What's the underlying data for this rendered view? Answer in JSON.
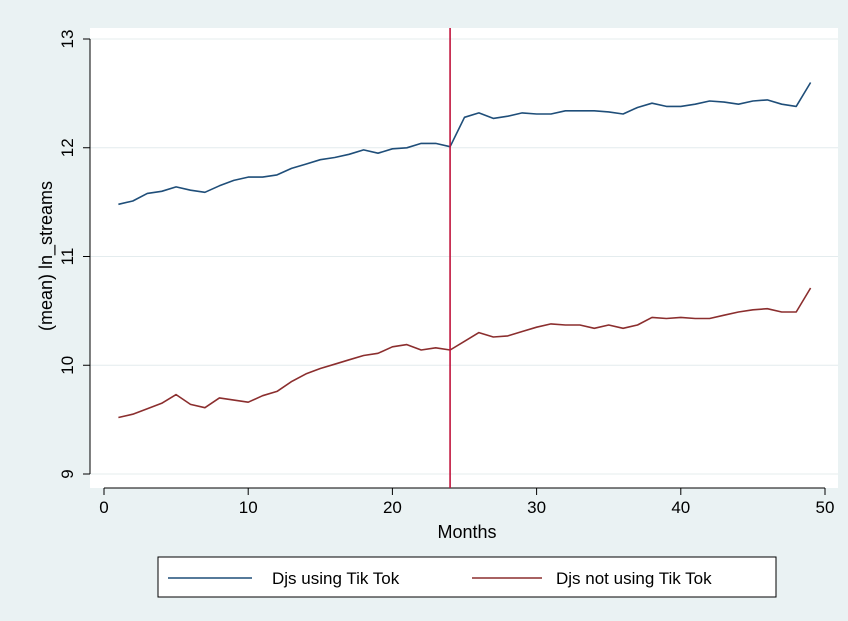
{
  "chart_data": {
    "type": "line",
    "title": "",
    "xlabel": "Months",
    "ylabel": "(mean) ln_streams",
    "xlim": [
      0,
      50
    ],
    "ylim": [
      9,
      13
    ],
    "xticks": [
      0,
      10,
      20,
      30,
      40,
      50
    ],
    "yticks": [
      9,
      10,
      11,
      12,
      13
    ],
    "grid": "horizontal",
    "legend_position": "bottom",
    "reference_line": {
      "axis": "x",
      "value": 24,
      "color": "#c0143c"
    },
    "series": [
      {
        "name": "Djs using Tik Tok",
        "color": "#1f4e79",
        "x": [
          1,
          2,
          3,
          4,
          5,
          6,
          7,
          8,
          9,
          10,
          11,
          12,
          13,
          14,
          15,
          16,
          17,
          18,
          19,
          20,
          21,
          22,
          23,
          24,
          25,
          26,
          27,
          28,
          29,
          30,
          31,
          32,
          33,
          34,
          35,
          36,
          37,
          38,
          39,
          40,
          41,
          42,
          43,
          44,
          45,
          46,
          47,
          48,
          49
        ],
        "y": [
          11.48,
          11.51,
          11.58,
          11.6,
          11.64,
          11.61,
          11.59,
          11.65,
          11.7,
          11.73,
          11.73,
          11.75,
          11.81,
          11.85,
          11.89,
          11.91,
          11.94,
          11.98,
          11.95,
          11.99,
          12.0,
          12.04,
          12.04,
          12.01,
          12.28,
          12.32,
          12.27,
          12.29,
          12.32,
          12.31,
          12.31,
          12.34,
          12.34,
          12.34,
          12.33,
          12.31,
          12.37,
          12.41,
          12.38,
          12.38,
          12.4,
          12.43,
          12.42,
          12.4,
          12.43,
          12.44,
          12.4,
          12.38,
          12.6
        ]
      },
      {
        "name": "Djs not using Tik Tok",
        "color": "#8b2e2e",
        "x": [
          1,
          2,
          3,
          4,
          5,
          6,
          7,
          8,
          9,
          10,
          11,
          12,
          13,
          14,
          15,
          16,
          17,
          18,
          19,
          20,
          21,
          22,
          23,
          24,
          25,
          26,
          27,
          28,
          29,
          30,
          31,
          32,
          33,
          34,
          35,
          36,
          37,
          38,
          39,
          40,
          41,
          42,
          43,
          44,
          45,
          46,
          47,
          48,
          49
        ],
        "y": [
          9.52,
          9.55,
          9.6,
          9.65,
          9.73,
          9.64,
          9.61,
          9.7,
          9.68,
          9.66,
          9.72,
          9.76,
          9.85,
          9.92,
          9.97,
          10.01,
          10.05,
          10.09,
          10.11,
          10.17,
          10.19,
          10.14,
          10.16,
          10.14,
          10.22,
          10.3,
          10.26,
          10.27,
          10.31,
          10.35,
          10.38,
          10.37,
          10.37,
          10.34,
          10.37,
          10.34,
          10.37,
          10.44,
          10.43,
          10.44,
          10.43,
          10.43,
          10.46,
          10.49,
          10.51,
          10.52,
          10.49,
          10.49,
          10.71
        ]
      }
    ]
  }
}
